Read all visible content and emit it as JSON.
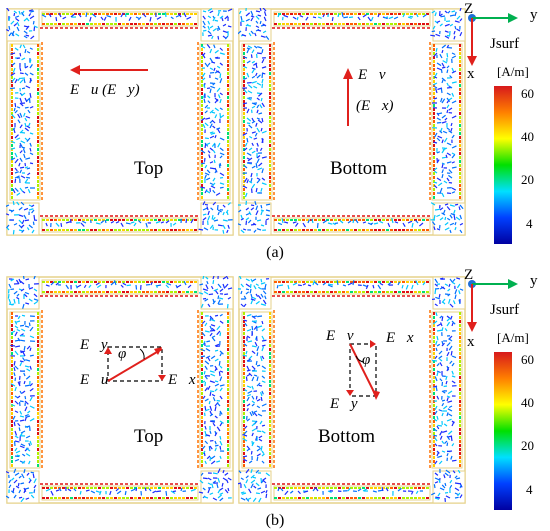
{
  "subfigures": [
    {
      "label": "(a)",
      "panels": [
        {
          "name": "Top",
          "vector_label": "E⃗u (E⃗y)",
          "arrow": "left"
        },
        {
          "name": "Bottom",
          "vector_label_1": "E⃗v",
          "vector_label_2": "(E⃗x)",
          "arrow": "up"
        }
      ]
    },
    {
      "label": "(b)",
      "panels": [
        {
          "name": "Top",
          "labels": [
            "E⃗y",
            "φ",
            "E⃗u",
            "E⃗x"
          ]
        },
        {
          "name": "Bottom",
          "labels": [
            "E⃗v",
            "E⃗x",
            "φ",
            "E⃗y"
          ]
        }
      ]
    }
  ],
  "axes": {
    "z": "Z",
    "y": "y",
    "x": "x"
  },
  "legend": {
    "title": "Jsurf",
    "unit": "[A/m]",
    "ticks": [
      "60",
      "40",
      "20",
      "4"
    ],
    "colors": [
      "#d7191c",
      "#ff7f00",
      "#ffff00",
      "#00e000",
      "#00e0ff",
      "#0040ff",
      "#0000a0"
    ]
  }
}
